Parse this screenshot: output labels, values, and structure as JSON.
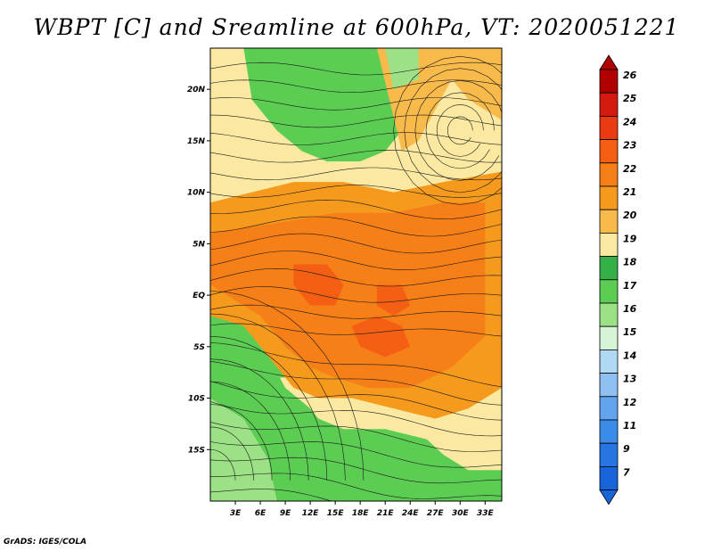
{
  "chart_data": {
    "type": "heatmap",
    "title": "WBPT [C] and Sreamline at 600hPa, VT: 2020051221",
    "variable": "WBPT",
    "units": "C",
    "level": "600hPa",
    "valid_time": "2020051221",
    "overlay": "streamlines",
    "x_axis": {
      "name": "longitude",
      "range": [
        0,
        35
      ],
      "ticks": [
        3,
        6,
        9,
        12,
        15,
        18,
        21,
        24,
        27,
        30,
        33
      ],
      "tick_labels": [
        "3E",
        "6E",
        "9E",
        "12E",
        "15E",
        "18E",
        "21E",
        "24E",
        "27E",
        "30E",
        "33E"
      ]
    },
    "y_axis": {
      "name": "latitude",
      "range": [
        -20,
        24
      ],
      "ticks": [
        20,
        15,
        10,
        5,
        0,
        -5,
        -10,
        -15
      ],
      "tick_labels": [
        "20N",
        "15N",
        "10N",
        "5N",
        "EQ",
        "5S",
        "10S",
        "15S"
      ]
    },
    "colorbar": {
      "labels": [
        "26",
        "25",
        "24",
        "23",
        "22",
        "21",
        "20",
        "19",
        "18",
        "17",
        "16",
        "15",
        "14",
        "13",
        "12",
        "11",
        "9",
        "7"
      ],
      "colors": [
        "#b10000",
        "#d41a0f",
        "#ea3a12",
        "#f45f14",
        "#f77f17",
        "#f59a1d",
        "#f8bb4b",
        "#fbe9a2",
        "#34b046",
        "#5ccd53",
        "#9de187",
        "#d6f5d8",
        "#b0d9f4",
        "#8ec1f1",
        "#62a5ee",
        "#3b8be9",
        "#2775e2",
        "#1765d8"
      ],
      "extend": "both"
    },
    "value_ranges": {
      "north_band_min": 16,
      "north_band_max": 20,
      "central_corridor_min": 20,
      "central_corridor_max": 23,
      "southwest_min": 16,
      "southwest_max": 18
    }
  },
  "footer": {
    "credit": "GrADS: IGES/COLA"
  }
}
